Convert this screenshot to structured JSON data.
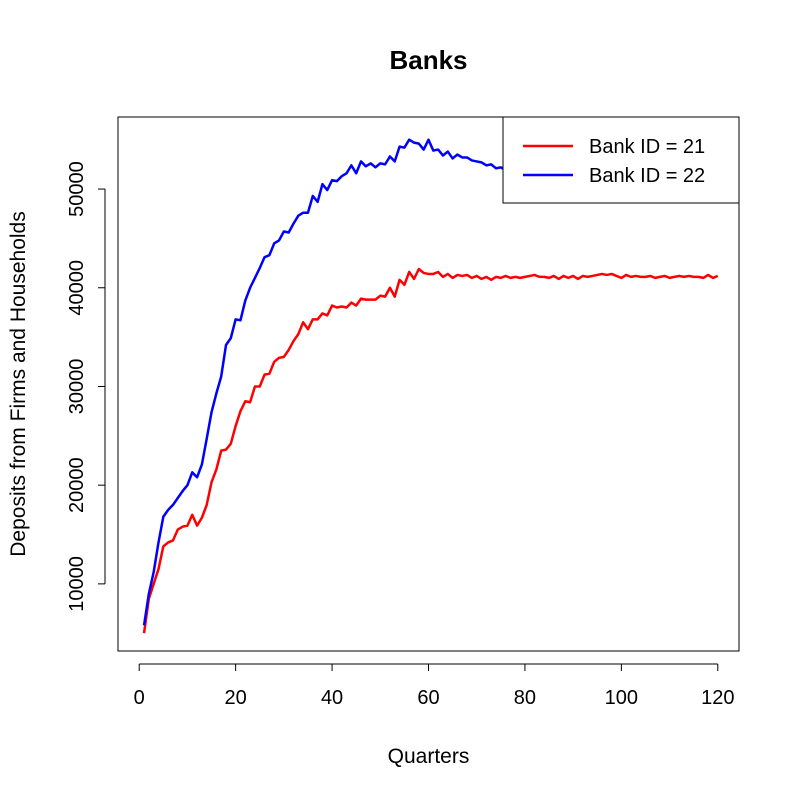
{
  "chart_data": {
    "type": "line",
    "title": "Banks",
    "xlabel": "Quarters",
    "ylabel": "Deposits from Firms and Households",
    "xlim": [
      -4.4,
      124.4
    ],
    "ylim": [
      3200,
      57300
    ],
    "x_ticks": [
      0,
      20,
      40,
      60,
      80,
      100,
      120
    ],
    "y_ticks": [
      10000,
      20000,
      30000,
      40000,
      50000
    ],
    "grid": false,
    "legend_position": "top-right",
    "series": [
      {
        "name": "Bank ID = 21",
        "color": "#ff0000",
        "x": [
          1,
          2,
          3,
          4,
          5,
          6,
          7,
          8,
          9,
          10,
          11,
          12,
          13,
          14,
          15,
          16,
          17,
          18,
          19,
          20,
          21,
          22,
          23,
          24,
          25,
          26,
          27,
          28,
          29,
          30,
          31,
          32,
          33,
          34,
          35,
          36,
          37,
          38,
          39,
          40,
          41,
          42,
          43,
          44,
          45,
          46,
          47,
          48,
          49,
          50,
          51,
          52,
          53,
          54,
          55,
          56,
          57,
          58,
          59,
          60,
          61,
          62,
          63,
          64,
          65,
          66,
          67,
          68,
          69,
          70,
          71,
          72,
          73,
          74,
          75,
          76,
          77,
          78,
          79,
          80,
          81,
          82,
          83,
          84,
          85,
          86,
          87,
          88,
          89,
          90,
          91,
          92,
          93,
          94,
          95,
          96,
          97,
          98,
          99,
          100,
          101,
          102,
          103,
          104,
          105,
          106,
          107,
          108,
          109,
          110,
          111,
          112,
          113,
          114,
          115,
          116,
          117,
          118,
          119,
          120
        ],
        "values": [
          5000,
          8500,
          10000,
          11500,
          13800,
          14200,
          14400,
          15500,
          15800,
          15900,
          17000,
          15900,
          16700,
          18000,
          20300,
          21600,
          23500,
          23600,
          24200,
          26000,
          27500,
          28500,
          28400,
          30000,
          30000,
          31200,
          31300,
          32500,
          32900,
          33000,
          33700,
          34600,
          35300,
          36500,
          35800,
          36800,
          36800,
          37400,
          37200,
          38200,
          38000,
          38100,
          38000,
          38500,
          38200,
          38900,
          38800,
          38800,
          38800,
          39200,
          39100,
          40000,
          39100,
          40800,
          40300,
          41600,
          40900,
          41900,
          41500,
          41400,
          41400,
          41600,
          41100,
          41400,
          41000,
          41300,
          41200,
          41300,
          41000,
          41200,
          40900,
          41100,
          40800,
          41100,
          41000,
          41200,
          41000,
          41100,
          41000,
          41100,
          41200,
          41300,
          41100,
          41100,
          41000,
          41200,
          40900,
          41200,
          41000,
          41200,
          40900,
          41200,
          41100,
          41200,
          41300,
          41400,
          41300,
          41400,
          41200,
          41000,
          41300,
          41100,
          41200,
          41100,
          41100,
          41200,
          41000,
          41100,
          41200,
          41000,
          41100,
          41200,
          41100,
          41200,
          41100,
          41100,
          41000,
          41300,
          41000,
          41200
        ]
      },
      {
        "name": "Bank ID = 22",
        "color": "#0000ff",
        "x": [
          1,
          2,
          3,
          4,
          5,
          6,
          7,
          8,
          9,
          10,
          11,
          12,
          13,
          14,
          15,
          16,
          17,
          18,
          19,
          20,
          21,
          22,
          23,
          24,
          25,
          26,
          27,
          28,
          29,
          30,
          31,
          32,
          33,
          34,
          35,
          36,
          37,
          38,
          39,
          40,
          41,
          42,
          43,
          44,
          45,
          46,
          47,
          48,
          49,
          50,
          51,
          52,
          53,
          54,
          55,
          56,
          57,
          58,
          59,
          60,
          61,
          62,
          63,
          64,
          65,
          66,
          67,
          68,
          69,
          70,
          71,
          72,
          73,
          74,
          75,
          76,
          77,
          78
        ],
        "values": [
          5800,
          9000,
          11200,
          14200,
          16800,
          17500,
          18000,
          18700,
          19400,
          20000,
          21300,
          20800,
          22100,
          24700,
          27400,
          29300,
          31000,
          34200,
          34900,
          36800,
          36700,
          38700,
          40000,
          41000,
          42000,
          43100,
          43300,
          44500,
          44800,
          45700,
          45600,
          46500,
          47300,
          47600,
          47600,
          49300,
          48700,
          50500,
          49900,
          50900,
          50800,
          51300,
          51600,
          52400,
          51600,
          52800,
          52300,
          52600,
          52200,
          52600,
          52500,
          53300,
          52800,
          54300,
          54200,
          55000,
          54700,
          54600,
          54000,
          55000,
          53900,
          54000,
          53400,
          53800,
          53100,
          53500,
          53200,
          53200,
          52900,
          52800,
          52700,
          52400,
          52500,
          52100,
          52200,
          51900,
          51900,
          51700
        ]
      }
    ]
  }
}
